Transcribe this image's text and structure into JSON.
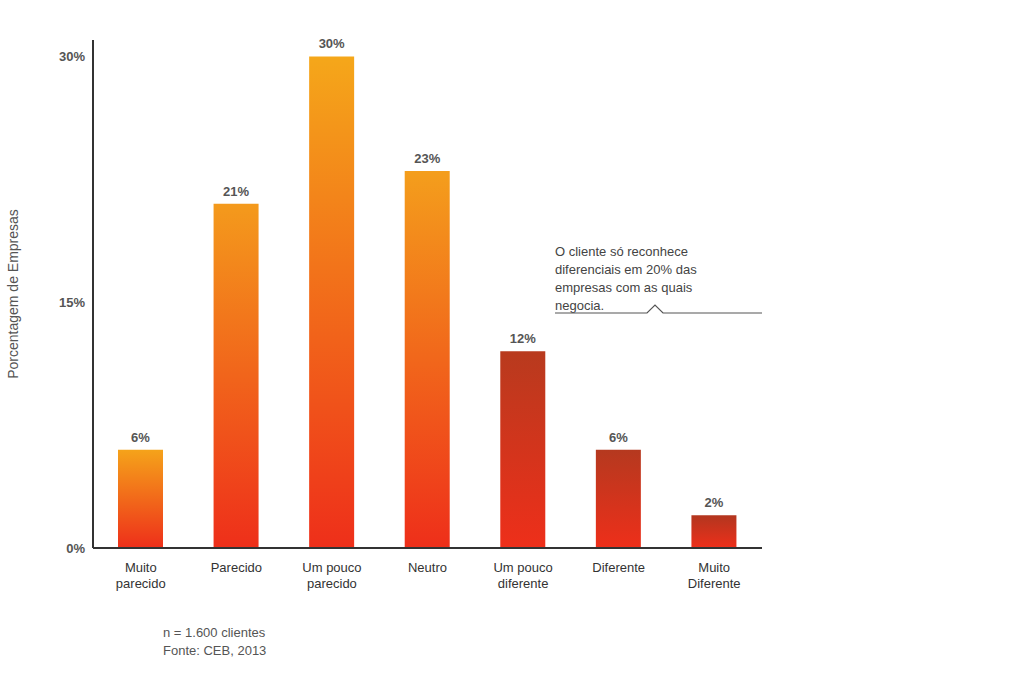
{
  "chart_data": {
    "type": "bar",
    "y_label": "Porcentagem de Empresas",
    "categories": [
      "Muito parecido",
      "Parecido",
      "Um pouco parecido",
      "Neutro",
      "Um pouco diferente",
      "Diferente",
      "Muito Diferente"
    ],
    "values": [
      6,
      21,
      30,
      23,
      12,
      6,
      2
    ],
    "value_labels": [
      "6%",
      "21%",
      "30%",
      "23%",
      "12%",
      "6%",
      "2%"
    ],
    "data_labels": true,
    "colors": [
      "#f5a31a",
      "#f49a1c",
      "#f5a71a",
      "#f49e1c",
      "#b83a1e",
      "#b5391f",
      "#b2361f"
    ],
    "ylim": [
      0,
      31
    ],
    "yticks": [
      {
        "value": 0,
        "label": "0%"
      },
      {
        "value": 15,
        "label": "15%"
      },
      {
        "value": 30,
        "label": "30%"
      }
    ],
    "grid": false,
    "annotation": "O cliente só reconhece diferenciais em 20% das empresas com as quais negocia.",
    "notes": [
      "n = 1.600 clientes",
      "Fonte: CEB, 2013"
    ]
  }
}
